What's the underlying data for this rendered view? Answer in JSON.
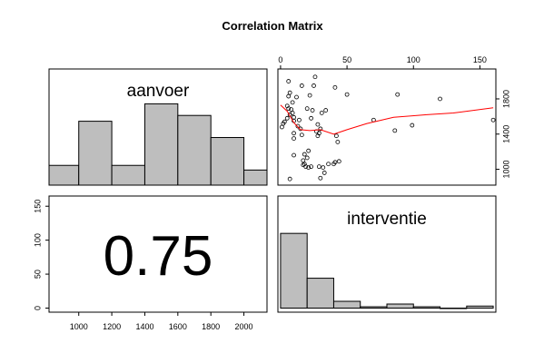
{
  "chart_data": {
    "type": "pairs",
    "title": "Correlation Matrix",
    "variables": [
      "aanvoer",
      "interventie"
    ],
    "correlation": "0.75",
    "grid": false,
    "colors": {
      "bar": "#bebebe",
      "smooth": "#ff0000",
      "axis": "#000000"
    },
    "axes": {
      "aanvoer": {
        "range": [
          820,
          2140
        ],
        "ticks": [
          1000,
          1200,
          1400,
          1600,
          1800,
          2000
        ],
        "right_ticks": [
          1000,
          1400,
          1800
        ]
      },
      "interventie": {
        "range": [
          -2,
          162
        ],
        "ticks": [
          0,
          50,
          100,
          150
        ],
        "scatter_ticks": [
          0,
          50,
          100,
          150
        ]
      },
      "interventie_hist_count": {
        "range": [
          -6,
          165
        ],
        "ticks": [
          0,
          50,
          100,
          150
        ]
      }
    },
    "aanvoer_histogram": {
      "bin_edges": [
        800,
        1000,
        1200,
        1400,
        1600,
        1800,
        2000,
        2200
      ],
      "relative_heights": [
        0.17,
        0.55,
        0.17,
        0.7,
        0.6,
        0.41,
        0.13
      ]
    },
    "interventie_histogram": {
      "bin_edges": [
        0,
        20,
        40,
        60,
        80,
        100,
        120,
        140,
        160
      ],
      "counts": [
        110,
        44,
        10,
        2,
        6,
        2,
        0,
        3
      ]
    },
    "scatter": {
      "x_variable": "interventie",
      "y_variable": "aanvoer",
      "points": [
        [
          1,
          1480
        ],
        [
          2,
          1520
        ],
        [
          3,
          1540
        ],
        [
          5,
          1720
        ],
        [
          5,
          1580
        ],
        [
          6,
          1830
        ],
        [
          6,
          1690
        ],
        [
          6,
          2000
        ],
        [
          7,
          1870
        ],
        [
          7,
          1620
        ],
        [
          7,
          890
        ],
        [
          8,
          1680
        ],
        [
          9,
          1640
        ],
        [
          9,
          1760
        ],
        [
          10,
          1590
        ],
        [
          10,
          1550
        ],
        [
          10,
          1410
        ],
        [
          10,
          1350
        ],
        [
          10,
          1160
        ],
        [
          12,
          1820
        ],
        [
          13,
          1490
        ],
        [
          14,
          1560
        ],
        [
          15,
          1460
        ],
        [
          16,
          1390
        ],
        [
          16,
          1950
        ],
        [
          17,
          1050
        ],
        [
          17,
          1100
        ],
        [
          18,
          1170
        ],
        [
          18,
          1060
        ],
        [
          19,
          1030
        ],
        [
          20,
          1690
        ],
        [
          20,
          1130
        ],
        [
          21,
          1210
        ],
        [
          21,
          1020
        ],
        [
          22,
          1840
        ],
        [
          23,
          1580
        ],
        [
          23,
          1030
        ],
        [
          24,
          1670
        ],
        [
          25,
          1950
        ],
        [
          26,
          2050
        ],
        [
          27,
          1430
        ],
        [
          28,
          1380
        ],
        [
          28,
          1510
        ],
        [
          29,
          1410
        ],
        [
          29,
          1030
        ],
        [
          30,
          1460
        ],
        [
          30,
          900
        ],
        [
          31,
          1640
        ],
        [
          32,
          1020
        ],
        [
          33,
          960
        ],
        [
          34,
          1670
        ],
        [
          36,
          1060
        ],
        [
          40,
          1060
        ],
        [
          41,
          1930
        ],
        [
          41,
          1080
        ],
        [
          42,
          1380
        ],
        [
          43,
          1310
        ],
        [
          44,
          1090
        ],
        [
          50,
          1850
        ],
        [
          70,
          1560
        ],
        [
          86,
          1440
        ],
        [
          88,
          1850
        ],
        [
          99,
          1500
        ],
        [
          120,
          1800
        ],
        [
          160,
          1560
        ]
      ],
      "smooth": [
        [
          0,
          1730
        ],
        [
          5,
          1660
        ],
        [
          10,
          1530
        ],
        [
          15,
          1450
        ],
        [
          22,
          1440
        ],
        [
          30,
          1450
        ],
        [
          40,
          1400
        ],
        [
          50,
          1450
        ],
        [
          65,
          1520
        ],
        [
          85,
          1590
        ],
        [
          110,
          1620
        ],
        [
          130,
          1640
        ],
        [
          160,
          1700
        ]
      ]
    }
  }
}
